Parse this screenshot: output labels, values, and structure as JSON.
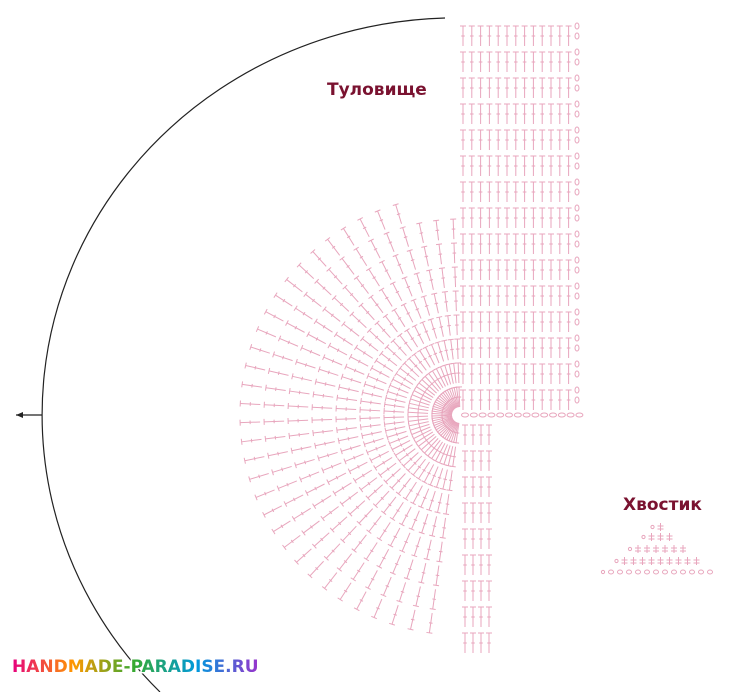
{
  "labels": {
    "body": "Туловище",
    "tail": "Хвостик"
  },
  "watermark": "HANDMADE-PARADISE.RU"
}
